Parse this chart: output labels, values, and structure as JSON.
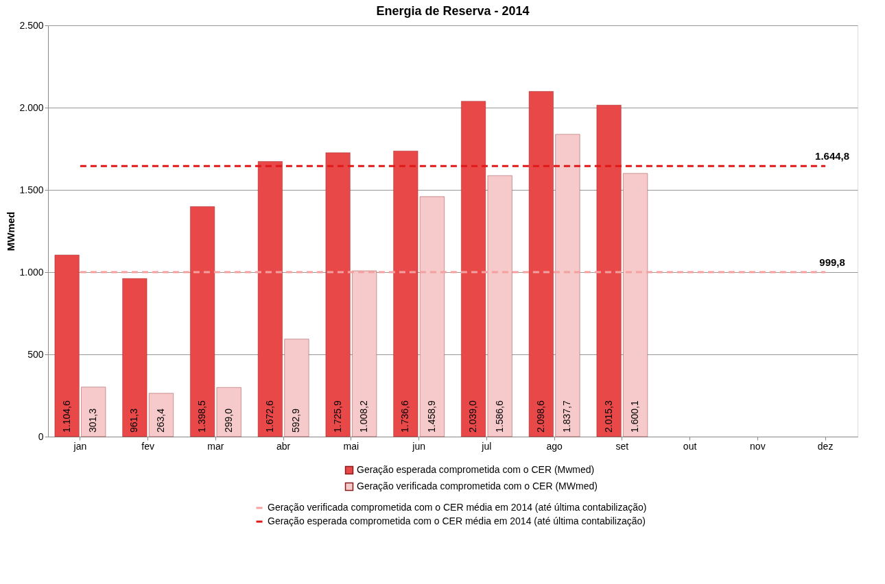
{
  "chart_data": {
    "type": "bar",
    "title": "Energia de Reserva - 2014",
    "ylabel": "MWmed",
    "categories": [
      "jan",
      "fev",
      "mar",
      "abr",
      "mai",
      "jun",
      "jul",
      "ago",
      "set",
      "out",
      "nov",
      "dez"
    ],
    "series": [
      {
        "name": "Geração esperada comprometida com o CER (Mwmed)",
        "color": "#e84848",
        "values": [
          1104.6,
          961.3,
          1398.5,
          1672.6,
          1725.9,
          1736.6,
          2039.0,
          2098.6,
          2015.3,
          null,
          null,
          null
        ],
        "value_labels": [
          "1.104,6",
          "961,3",
          "1.398,5",
          "1.672,6",
          "1.725,9",
          "1.736,6",
          "2.039,0",
          "2.098,6",
          "2.015,3",
          null,
          null,
          null
        ]
      },
      {
        "name": "Geração verificada comprometida com o CER (MWmed)",
        "color": "#f6caca",
        "values": [
          301.3,
          263.4,
          299.0,
          592.9,
          1008.2,
          1458.9,
          1586.6,
          1837.7,
          1600.1,
          null,
          null,
          null
        ],
        "value_labels": [
          "301,3",
          "263,4",
          "299,0",
          "592,9",
          "1.008,2",
          "1.458,9",
          "1.586,6",
          "1.837,7",
          "1.600,1",
          null,
          null,
          null
        ]
      },
      {
        "name": "Geração verificada comprometida com o CER média em 2014 (até última contabilização)",
        "type": "line",
        "line_style": "dashed",
        "color": "#f4a0a0",
        "values": [
          999.8,
          999.8,
          999.8,
          999.8,
          999.8,
          999.8,
          999.8,
          999.8,
          999.8,
          999.8,
          999.8,
          999.8
        ]
      },
      {
        "name": "Geração esperada comprometida com o CER média em 2014 (até última contabilização)",
        "type": "line",
        "line_style": "dashed",
        "color": "#e01818",
        "values": [
          1644.8,
          1644.8,
          1644.8,
          1644.8,
          1644.8,
          1644.8,
          1644.8,
          1644.8,
          1644.8,
          1644.8,
          1644.8,
          1644.8
        ]
      }
    ],
    "annotations": [
      {
        "text": "1.644,8",
        "x": "dez",
        "y": 1644.8
      },
      {
        "text": "999,8",
        "x": "dez",
        "y": 999.8
      }
    ],
    "ylim": [
      0,
      2500
    ],
    "yticks": [
      0,
      500,
      {
        "value": 1000,
        "label": "1.000"
      },
      {
        "value": 1500,
        "label": "1.500"
      },
      {
        "value": 2000,
        "label": "2.000"
      },
      {
        "value": 2500,
        "label": "2.500"
      }
    ],
    "grid": "y",
    "legend": "bottom"
  }
}
